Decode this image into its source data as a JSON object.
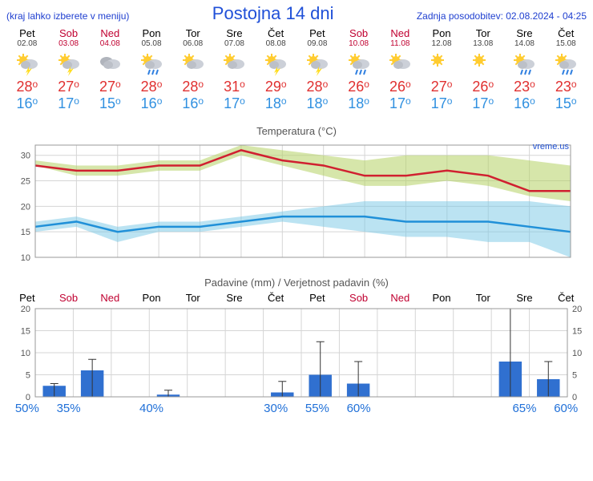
{
  "header": {
    "note": "(kraj lahko izberete v meniju)",
    "title": "Postojna 14 dni",
    "update": "Zadnja posodobitev: 02.08.2024 - 04:25"
  },
  "days": [
    {
      "name": "Pet",
      "date": "02.08",
      "wknd": false,
      "icon": "tstorm",
      "hi": 28,
      "lo": 16
    },
    {
      "name": "Sob",
      "date": "03.08",
      "wknd": true,
      "icon": "tstorm",
      "hi": 27,
      "lo": 17
    },
    {
      "name": "Ned",
      "date": "04.08",
      "wknd": true,
      "icon": "cloudy",
      "hi": 27,
      "lo": 15
    },
    {
      "name": "Pon",
      "date": "05.08",
      "wknd": false,
      "icon": "rain",
      "hi": 28,
      "lo": 16
    },
    {
      "name": "Tor",
      "date": "06.08",
      "wknd": false,
      "icon": "partly",
      "hi": 28,
      "lo": 16
    },
    {
      "name": "Sre",
      "date": "07.08",
      "wknd": false,
      "icon": "partly",
      "hi": 31,
      "lo": 17
    },
    {
      "name": "Čet",
      "date": "08.08",
      "wknd": false,
      "icon": "tstorm",
      "hi": 29,
      "lo": 18
    },
    {
      "name": "Pet",
      "date": "09.08",
      "wknd": false,
      "icon": "tstorm",
      "hi": 28,
      "lo": 18
    },
    {
      "name": "Sob",
      "date": "10.08",
      "wknd": true,
      "icon": "rain",
      "hi": 26,
      "lo": 18
    },
    {
      "name": "Ned",
      "date": "11.08",
      "wknd": true,
      "icon": "partly",
      "hi": 26,
      "lo": 17
    },
    {
      "name": "Pon",
      "date": "12.08",
      "wknd": false,
      "icon": "sunny",
      "hi": 27,
      "lo": 17
    },
    {
      "name": "Tor",
      "date": "13.08",
      "wknd": false,
      "icon": "sunny",
      "hi": 26,
      "lo": 17
    },
    {
      "name": "Sre",
      "date": "14.08",
      "wknd": false,
      "icon": "rain",
      "hi": 23,
      "lo": 16
    },
    {
      "name": "Čet",
      "date": "15.08",
      "wknd": false,
      "icon": "rain",
      "hi": 23,
      "lo": 15
    }
  ],
  "tempChart": {
    "title": "Temperatura (°C)",
    "attrib": "vreme.us",
    "ylim": [
      10,
      32
    ],
    "yticks": [
      10,
      15,
      20,
      25,
      30
    ],
    "hiLine": [
      28,
      27,
      27,
      28,
      28,
      31,
      29,
      28,
      26,
      26,
      27,
      26,
      23,
      23
    ],
    "hiBandHi": [
      29,
      28,
      28,
      29,
      29,
      32,
      31,
      30,
      29,
      30,
      30,
      30,
      29,
      28
    ],
    "hiBandLo": [
      28,
      26,
      26,
      27,
      27,
      30,
      28,
      26,
      24,
      24,
      25,
      24,
      22,
      21
    ],
    "loLine": [
      16,
      17,
      15,
      16,
      16,
      17,
      18,
      18,
      18,
      17,
      17,
      17,
      16,
      15
    ],
    "loBandHi": [
      17,
      18,
      16,
      17,
      17,
      18,
      19,
      20,
      21,
      21,
      21,
      21,
      21,
      20
    ],
    "loBandLo": [
      15,
      16,
      13,
      15,
      15,
      16,
      17,
      16,
      15,
      14,
      14,
      13,
      13,
      10
    ],
    "colors": {
      "grid": "#d5d5d5",
      "hiLine": "#d02030",
      "loLine": "#2090d8",
      "hiBand": "rgba(180,210,100,0.55)",
      "loBand": "rgba(120,200,230,0.5)"
    }
  },
  "precip": {
    "title": "Padavine (mm) / Verjetnost padavin (%)",
    "ylim": [
      0,
      20
    ],
    "yticks": [
      0,
      5,
      10,
      15,
      20
    ],
    "bars": [
      2.5,
      6,
      0,
      0.5,
      0,
      0,
      1,
      5,
      3,
      0,
      0,
      0,
      8,
      4
    ],
    "errHi": [
      3,
      8.5,
      0,
      1.5,
      0,
      0,
      3.5,
      12.5,
      8,
      0,
      0,
      0,
      20,
      8
    ],
    "prob": [
      50,
      35,
      null,
      40,
      null,
      null,
      30,
      55,
      60,
      null,
      null,
      null,
      65,
      60
    ],
    "colors": {
      "bar": "#3070d0",
      "err": "#333",
      "grid": "#d5d5d5"
    }
  },
  "style": {
    "leftPad": 36,
    "rightPad": 24,
    "plotW": 664
  }
}
